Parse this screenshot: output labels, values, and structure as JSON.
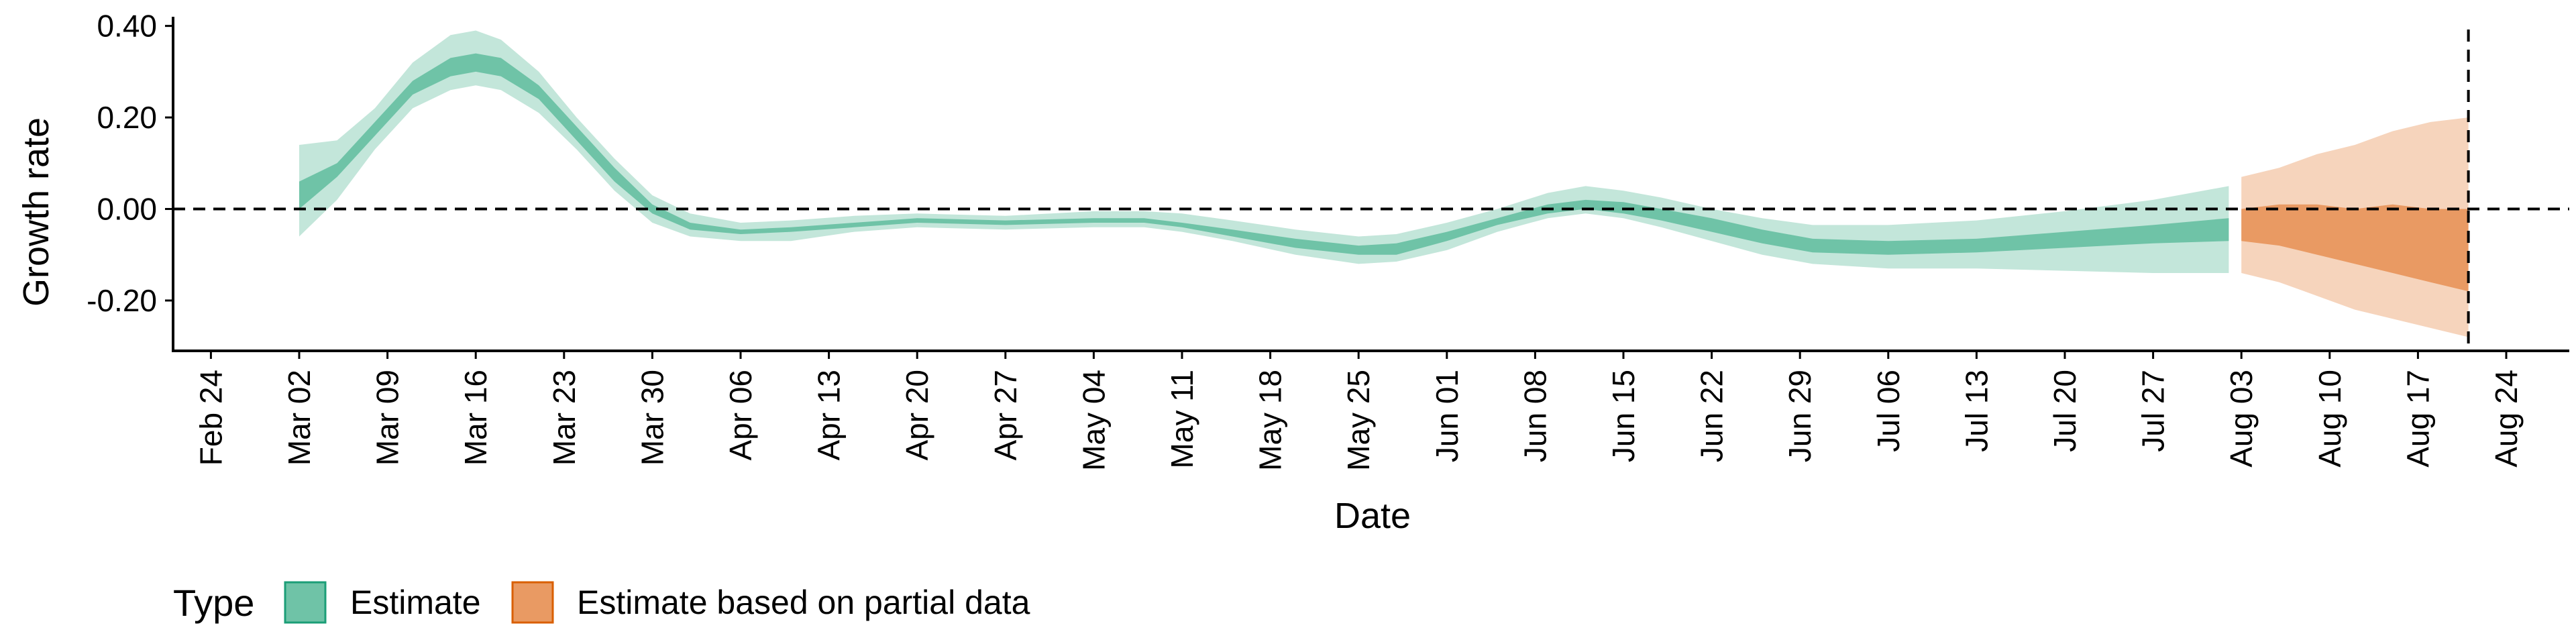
{
  "chart_data": {
    "type": "area",
    "title": "",
    "xlabel": "Date",
    "ylabel": "Growth rate",
    "x_range": [
      "2020-02-21",
      "2020-08-29"
    ],
    "ylim": [
      -0.31,
      0.42
    ],
    "y_ticks": [
      -0.2,
      0.0,
      0.2,
      0.4
    ],
    "y_tick_labels": [
      "-0.20",
      "0.00",
      "0.20",
      "0.40"
    ],
    "x_ticks": [
      "2020-02-24",
      "2020-03-02",
      "2020-03-09",
      "2020-03-16",
      "2020-03-23",
      "2020-03-30",
      "2020-04-06",
      "2020-04-13",
      "2020-04-20",
      "2020-04-27",
      "2020-05-04",
      "2020-05-11",
      "2020-05-18",
      "2020-05-25",
      "2020-06-01",
      "2020-06-08",
      "2020-06-15",
      "2020-06-22",
      "2020-06-29",
      "2020-07-06",
      "2020-07-13",
      "2020-07-20",
      "2020-07-27",
      "2020-08-03",
      "2020-08-10",
      "2020-08-17",
      "2020-08-24"
    ],
    "x_tick_labels": [
      "Feb 24",
      "Mar 02",
      "Mar 09",
      "Mar 16",
      "Mar 23",
      "Mar 30",
      "Apr 06",
      "Apr 13",
      "Apr 20",
      "Apr 27",
      "May 04",
      "May 11",
      "May 18",
      "May 25",
      "Jun 01",
      "Jun 08",
      "Jun 15",
      "Jun 22",
      "Jun 29",
      "Jul 06",
      "Jul 13",
      "Jul 20",
      "Jul 27",
      "Aug 03",
      "Aug 10",
      "Aug 17",
      "Aug 24"
    ],
    "reference_lines": {
      "horizontal_y": 0.0,
      "vertical_x": "2020-08-21"
    },
    "grid": false,
    "legend": {
      "title": "Type",
      "placement": "bottom-left",
      "entries": [
        {
          "label": "Estimate",
          "fill": "#6fc3a7",
          "border": "#1b9e77"
        },
        {
          "label": "Estimate based on partial data",
          "fill": "#e99a63",
          "border": "#d95f02"
        }
      ]
    },
    "series": [
      {
        "name": "Estimate",
        "colors": {
          "inner": "#6fc3a7",
          "outer": "#c3e6da"
        },
        "x": [
          "2020-03-02",
          "2020-03-05",
          "2020-03-08",
          "2020-03-11",
          "2020-03-14",
          "2020-03-16",
          "2020-03-18",
          "2020-03-21",
          "2020-03-24",
          "2020-03-27",
          "2020-03-30",
          "2020-04-02",
          "2020-04-06",
          "2020-04-10",
          "2020-04-15",
          "2020-04-20",
          "2020-04-27",
          "2020-05-04",
          "2020-05-08",
          "2020-05-11",
          "2020-05-15",
          "2020-05-20",
          "2020-05-25",
          "2020-05-28",
          "2020-06-01",
          "2020-06-05",
          "2020-06-09",
          "2020-06-12",
          "2020-06-15",
          "2020-06-18",
          "2020-06-22",
          "2020-06-26",
          "2020-06-30",
          "2020-07-06",
          "2020-07-13",
          "2020-07-20",
          "2020-07-27",
          "2020-08-02"
        ],
        "lower_outer": [
          -0.06,
          0.02,
          0.13,
          0.22,
          0.26,
          0.27,
          0.26,
          0.21,
          0.13,
          0.04,
          -0.03,
          -0.06,
          -0.07,
          -0.07,
          -0.05,
          -0.04,
          -0.045,
          -0.04,
          -0.04,
          -0.05,
          -0.07,
          -0.1,
          -0.12,
          -0.115,
          -0.09,
          -0.05,
          -0.02,
          -0.01,
          -0.02,
          -0.04,
          -0.07,
          -0.1,
          -0.12,
          -0.13,
          -0.13,
          -0.135,
          -0.14,
          -0.14
        ],
        "lower_inner": [
          0.0,
          0.07,
          0.16,
          0.25,
          0.29,
          0.3,
          0.29,
          0.24,
          0.15,
          0.06,
          -0.01,
          -0.045,
          -0.055,
          -0.05,
          -0.04,
          -0.03,
          -0.035,
          -0.03,
          -0.03,
          -0.04,
          -0.06,
          -0.085,
          -0.1,
          -0.1,
          -0.07,
          -0.035,
          -0.01,
          0.0,
          -0.01,
          -0.025,
          -0.05,
          -0.075,
          -0.095,
          -0.1,
          -0.095,
          -0.085,
          -0.075,
          -0.07
        ],
        "upper_inner": [
          0.06,
          0.1,
          0.19,
          0.28,
          0.33,
          0.34,
          0.33,
          0.27,
          0.18,
          0.09,
          0.01,
          -0.03,
          -0.045,
          -0.04,
          -0.03,
          -0.02,
          -0.025,
          -0.02,
          -0.02,
          -0.03,
          -0.045,
          -0.065,
          -0.08,
          -0.075,
          -0.05,
          -0.02,
          0.01,
          0.02,
          0.015,
          0.0,
          -0.02,
          -0.045,
          -0.065,
          -0.07,
          -0.065,
          -0.05,
          -0.035,
          -0.02
        ],
        "upper_outer": [
          0.14,
          0.15,
          0.22,
          0.32,
          0.38,
          0.39,
          0.37,
          0.3,
          0.2,
          0.11,
          0.03,
          -0.01,
          -0.03,
          -0.025,
          -0.015,
          -0.01,
          -0.015,
          -0.005,
          -0.005,
          -0.01,
          -0.025,
          -0.045,
          -0.06,
          -0.055,
          -0.03,
          0.0,
          0.035,
          0.05,
          0.04,
          0.025,
          0.0,
          -0.02,
          -0.035,
          -0.035,
          -0.025,
          -0.005,
          0.02,
          0.05
        ]
      },
      {
        "name": "Estimate based on partial data",
        "colors": {
          "inner": "#e99a63",
          "outer": "#f6d4bc"
        },
        "x": [
          "2020-08-03",
          "2020-08-06",
          "2020-08-09",
          "2020-08-12",
          "2020-08-15",
          "2020-08-18",
          "2020-08-21"
        ],
        "lower_outer": [
          -0.14,
          -0.16,
          -0.19,
          -0.22,
          -0.24,
          -0.26,
          -0.28
        ],
        "lower_inner": [
          -0.07,
          -0.08,
          -0.1,
          -0.12,
          -0.14,
          -0.16,
          -0.18
        ],
        "upper_inner": [
          0.0,
          0.01,
          0.01,
          0.0,
          0.01,
          0.0,
          0.0
        ],
        "upper_outer": [
          0.07,
          0.09,
          0.12,
          0.14,
          0.17,
          0.19,
          0.2
        ]
      }
    ]
  }
}
